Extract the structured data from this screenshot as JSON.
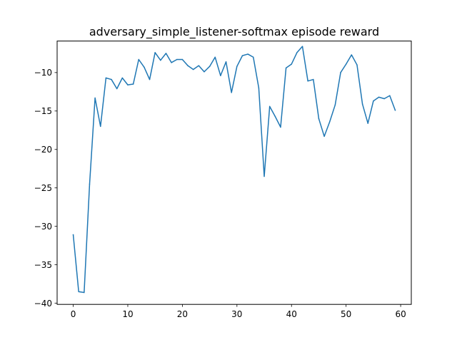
{
  "chart_data": {
    "type": "line",
    "title": "adversary_simple_listener-softmax episode reward",
    "xlabel": "",
    "ylabel": "",
    "xlim": [
      -2.95,
      61.95
    ],
    "ylim": [
      -40.15,
      -5.9
    ],
    "xticks": [
      0,
      10,
      20,
      30,
      40,
      50,
      60
    ],
    "yticks": [
      -40,
      -35,
      -30,
      -25,
      -20,
      -15,
      -10
    ],
    "grid": false,
    "legend": "none",
    "series": [
      {
        "color": "#1f77b4",
        "x": [
          0,
          1,
          2,
          3,
          4,
          5,
          6,
          7,
          8,
          9,
          10,
          11,
          12,
          13,
          14,
          15,
          16,
          17,
          18,
          19,
          20,
          21,
          22,
          23,
          24,
          25,
          26,
          27,
          28,
          29,
          30,
          31,
          32,
          33,
          34,
          35,
          36,
          37,
          38,
          39,
          40,
          41,
          42,
          43,
          44,
          45,
          46,
          47,
          48,
          49,
          50,
          51,
          52,
          53,
          54,
          55,
          56,
          57,
          58,
          59
        ],
        "values": [
          -31.1,
          -38.5,
          -38.6,
          -24.5,
          -13.3,
          -17.0,
          -10.7,
          -10.9,
          -12.1,
          -10.7,
          -11.6,
          -11.5,
          -8.3,
          -9.3,
          -10.9,
          -7.4,
          -8.4,
          -7.5,
          -8.7,
          -8.3,
          -8.3,
          -9.1,
          -9.6,
          -9.1,
          -9.9,
          -9.2,
          -8.0,
          -10.4,
          -8.6,
          -12.6,
          -9.2,
          -7.8,
          -7.6,
          -8.0,
          -12.0,
          -23.5,
          -14.4,
          -15.7,
          -17.1,
          -9.4,
          -8.9,
          -7.4,
          -6.6,
          -11.1,
          -10.9,
          -16.0,
          -18.3,
          -16.4,
          -14.2,
          -10.0,
          -8.9,
          -7.7,
          -9.0,
          -14.1,
          -16.6,
          -13.7,
          -13.2,
          -13.4,
          -13.0,
          -14.9
        ]
      }
    ]
  }
}
